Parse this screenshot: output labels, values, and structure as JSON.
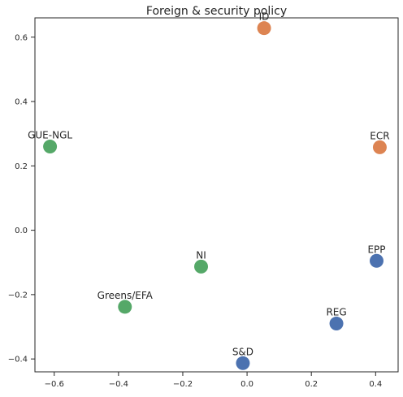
{
  "chart_data": {
    "type": "scatter",
    "title": "Foreign & security policy",
    "xlabel": "",
    "ylabel": "",
    "xlim": [
      -0.66,
      0.47
    ],
    "ylim": [
      -0.44,
      0.66
    ],
    "grid": false,
    "x_ticks": [
      -0.6,
      -0.4,
      -0.2,
      0.0,
      0.2,
      0.4
    ],
    "x_tick_labels": [
      "−0.6",
      "−0.4",
      "−0.2",
      "0.0",
      "0.2",
      "0.4"
    ],
    "y_ticks": [
      -0.4,
      -0.2,
      0.0,
      0.2,
      0.4,
      0.6
    ],
    "y_tick_labels": [
      "−0.4",
      "−0.2",
      "0.0",
      "0.2",
      "0.4",
      "0.6"
    ],
    "points": [
      {
        "label": "ID",
        "x": 0.053,
        "y": 0.628,
        "color": "#dd8452"
      },
      {
        "label": "ECR",
        "x": 0.413,
        "y": 0.258,
        "color": "#dd8452"
      },
      {
        "label": "GUE-NGL",
        "x": -0.613,
        "y": 0.26,
        "color": "#55a868"
      },
      {
        "label": "NI",
        "x": -0.143,
        "y": -0.113,
        "color": "#55a868"
      },
      {
        "label": "Greens/EFA",
        "x": -0.38,
        "y": -0.238,
        "color": "#55a868"
      },
      {
        "label": "EPP",
        "x": 0.403,
        "y": -0.095,
        "color": "#4c72b0"
      },
      {
        "label": "REG",
        "x": 0.278,
        "y": -0.29,
        "color": "#4c72b0"
      },
      {
        "label": "S&D",
        "x": -0.013,
        "y": -0.413,
        "color": "#4c72b0"
      }
    ]
  }
}
